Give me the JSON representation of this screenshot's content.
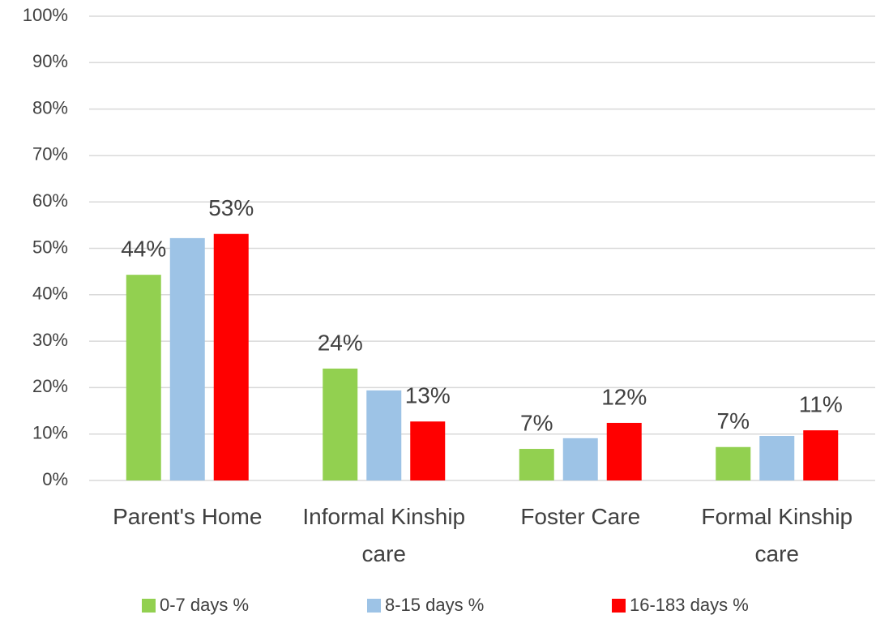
{
  "chart_data": {
    "type": "bar",
    "categories": [
      "Parent's Home",
      "Informal Kinship care",
      "Foster Care",
      "Formal Kinship care"
    ],
    "series": [
      {
        "name": "0-7 days %",
        "color": "#92d050",
        "values": [
          44.3,
          24.1,
          6.8,
          7.2
        ],
        "value_labels": [
          "44%",
          "24%",
          "7%",
          "7%"
        ]
      },
      {
        "name": "8-15 days %",
        "color": "#9dc3e6",
        "values": [
          52.2,
          19.4,
          9.1,
          9.6
        ],
        "value_labels": [
          null,
          null,
          null,
          null
        ]
      },
      {
        "name": "16-183 days %",
        "color": "#ff0000",
        "values": [
          53.1,
          12.7,
          12.4,
          10.8
        ],
        "value_labels": [
          "53%",
          "13%",
          "12%",
          "11%"
        ]
      }
    ],
    "ylim": [
      0,
      100
    ],
    "yticks": [
      {
        "value": 0,
        "label": "0%"
      },
      {
        "value": 10,
        "label": "10%"
      },
      {
        "value": 20,
        "label": "20%"
      },
      {
        "value": 30,
        "label": "30%"
      },
      {
        "value": 40,
        "label": "40%"
      },
      {
        "value": 50,
        "label": "50%"
      },
      {
        "value": 60,
        "label": "60%"
      },
      {
        "value": 70,
        "label": "70%"
      },
      {
        "value": 80,
        "label": "80%"
      },
      {
        "value": 90,
        "label": "90%"
      },
      {
        "value": 100,
        "label": "100%"
      }
    ],
    "grid": true,
    "legend": "bottom"
  }
}
